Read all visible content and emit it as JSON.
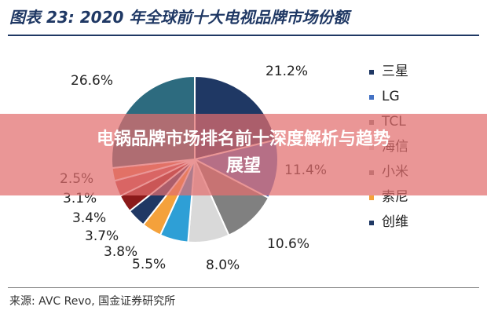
{
  "header": {
    "title": "图表 23: 2020 年全球前十大电视品牌市场份额"
  },
  "source": "来源: AVC Revo, 国金证券研究所",
  "overlay": {
    "line1": "电锅品牌市场排名前十深度解析与趋势",
    "line2": "展望"
  },
  "chart_data": {
    "type": "pie",
    "title": "2020 年全球前十大电视品牌市场份额",
    "unit": "%",
    "slices": [
      {
        "name": "三星",
        "value": 21.2,
        "label": "21.2%",
        "color": "#1f3864"
      },
      {
        "name": "LG",
        "value": 11.4,
        "label": "11.4%",
        "color": "#4472c4"
      },
      {
        "name": "TCL",
        "value": 10.6,
        "label": "10.6%",
        "color": "#808080"
      },
      {
        "name": "",
        "value": 8.0,
        "label": "8.0%",
        "color": "#d9d9d9"
      },
      {
        "name": "",
        "value": 5.5,
        "label": "5.5%",
        "color": "#2e9fd6"
      },
      {
        "name": "",
        "value": 3.8,
        "label": "3.8%",
        "color": "#f4a13b"
      },
      {
        "name": "",
        "value": 3.7,
        "label": "3.7%",
        "color": "#203864"
      },
      {
        "name": "",
        "value": 3.4,
        "label": "3.4%",
        "color": "#8b1a1a"
      },
      {
        "name": "",
        "value": 3.1,
        "label": "3.1%",
        "color": "#c0504d"
      },
      {
        "name": "",
        "value": 2.5,
        "label": "2.5%",
        "color": "#e07b53"
      },
      {
        "name": "",
        "value": 26.6,
        "label": "26.6%",
        "color": "#2d6b7f"
      }
    ],
    "legend": {
      "placement": "right",
      "items": [
        {
          "name": "三星",
          "color": "#1f3864"
        },
        {
          "name": "LG",
          "color": "#4472c4"
        },
        {
          "name": "TCL",
          "color": "#808080"
        },
        {
          "name": "海信",
          "color": "#d9d9d9"
        },
        {
          "name": "小米",
          "color": "#7f7f7f"
        },
        {
          "name": "索尼",
          "color": "#f4a13b"
        },
        {
          "name": "创维",
          "color": "#1f3864"
        }
      ]
    }
  }
}
